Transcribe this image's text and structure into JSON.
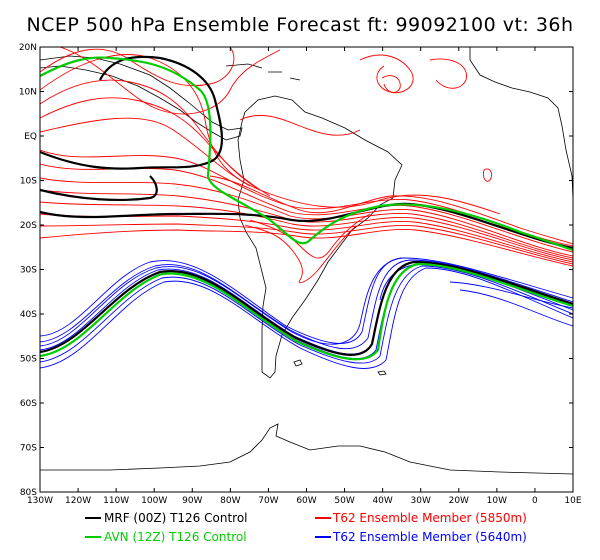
{
  "title": "NCEP 500 hPa Ensemble Forecast   ft: 99092100 vt: 36h",
  "map": {
    "lat_labels": [
      "20N",
      "10N",
      "EQ",
      "10S",
      "20S",
      "30S",
      "40S",
      "50S",
      "60S",
      "70S",
      "80S"
    ],
    "lon_labels": [
      "130W",
      "120W",
      "110W",
      "100W",
      "90W",
      "80W",
      "70W",
      "60W",
      "50W",
      "40W",
      "30W",
      "20W",
      "10W",
      "0",
      "10E"
    ],
    "colors": {
      "t62_5850": "#ff0000",
      "t62_5640": "#0000ff",
      "mrf_control": "#000000",
      "avn_control": "#00cc00",
      "land": "#000000"
    }
  },
  "legend": [
    {
      "label": "MRF (00Z) T126 Control",
      "color": "#000000"
    },
    {
      "label": "T62 Ensemble Member (5850m)",
      "color": "#ff0000"
    },
    {
      "label": "AVN (12Z) T126 Control",
      "color": "#00cc00"
    },
    {
      "label": "T62 Ensemble Member (5640m)",
      "color": "#0000ff"
    }
  ]
}
